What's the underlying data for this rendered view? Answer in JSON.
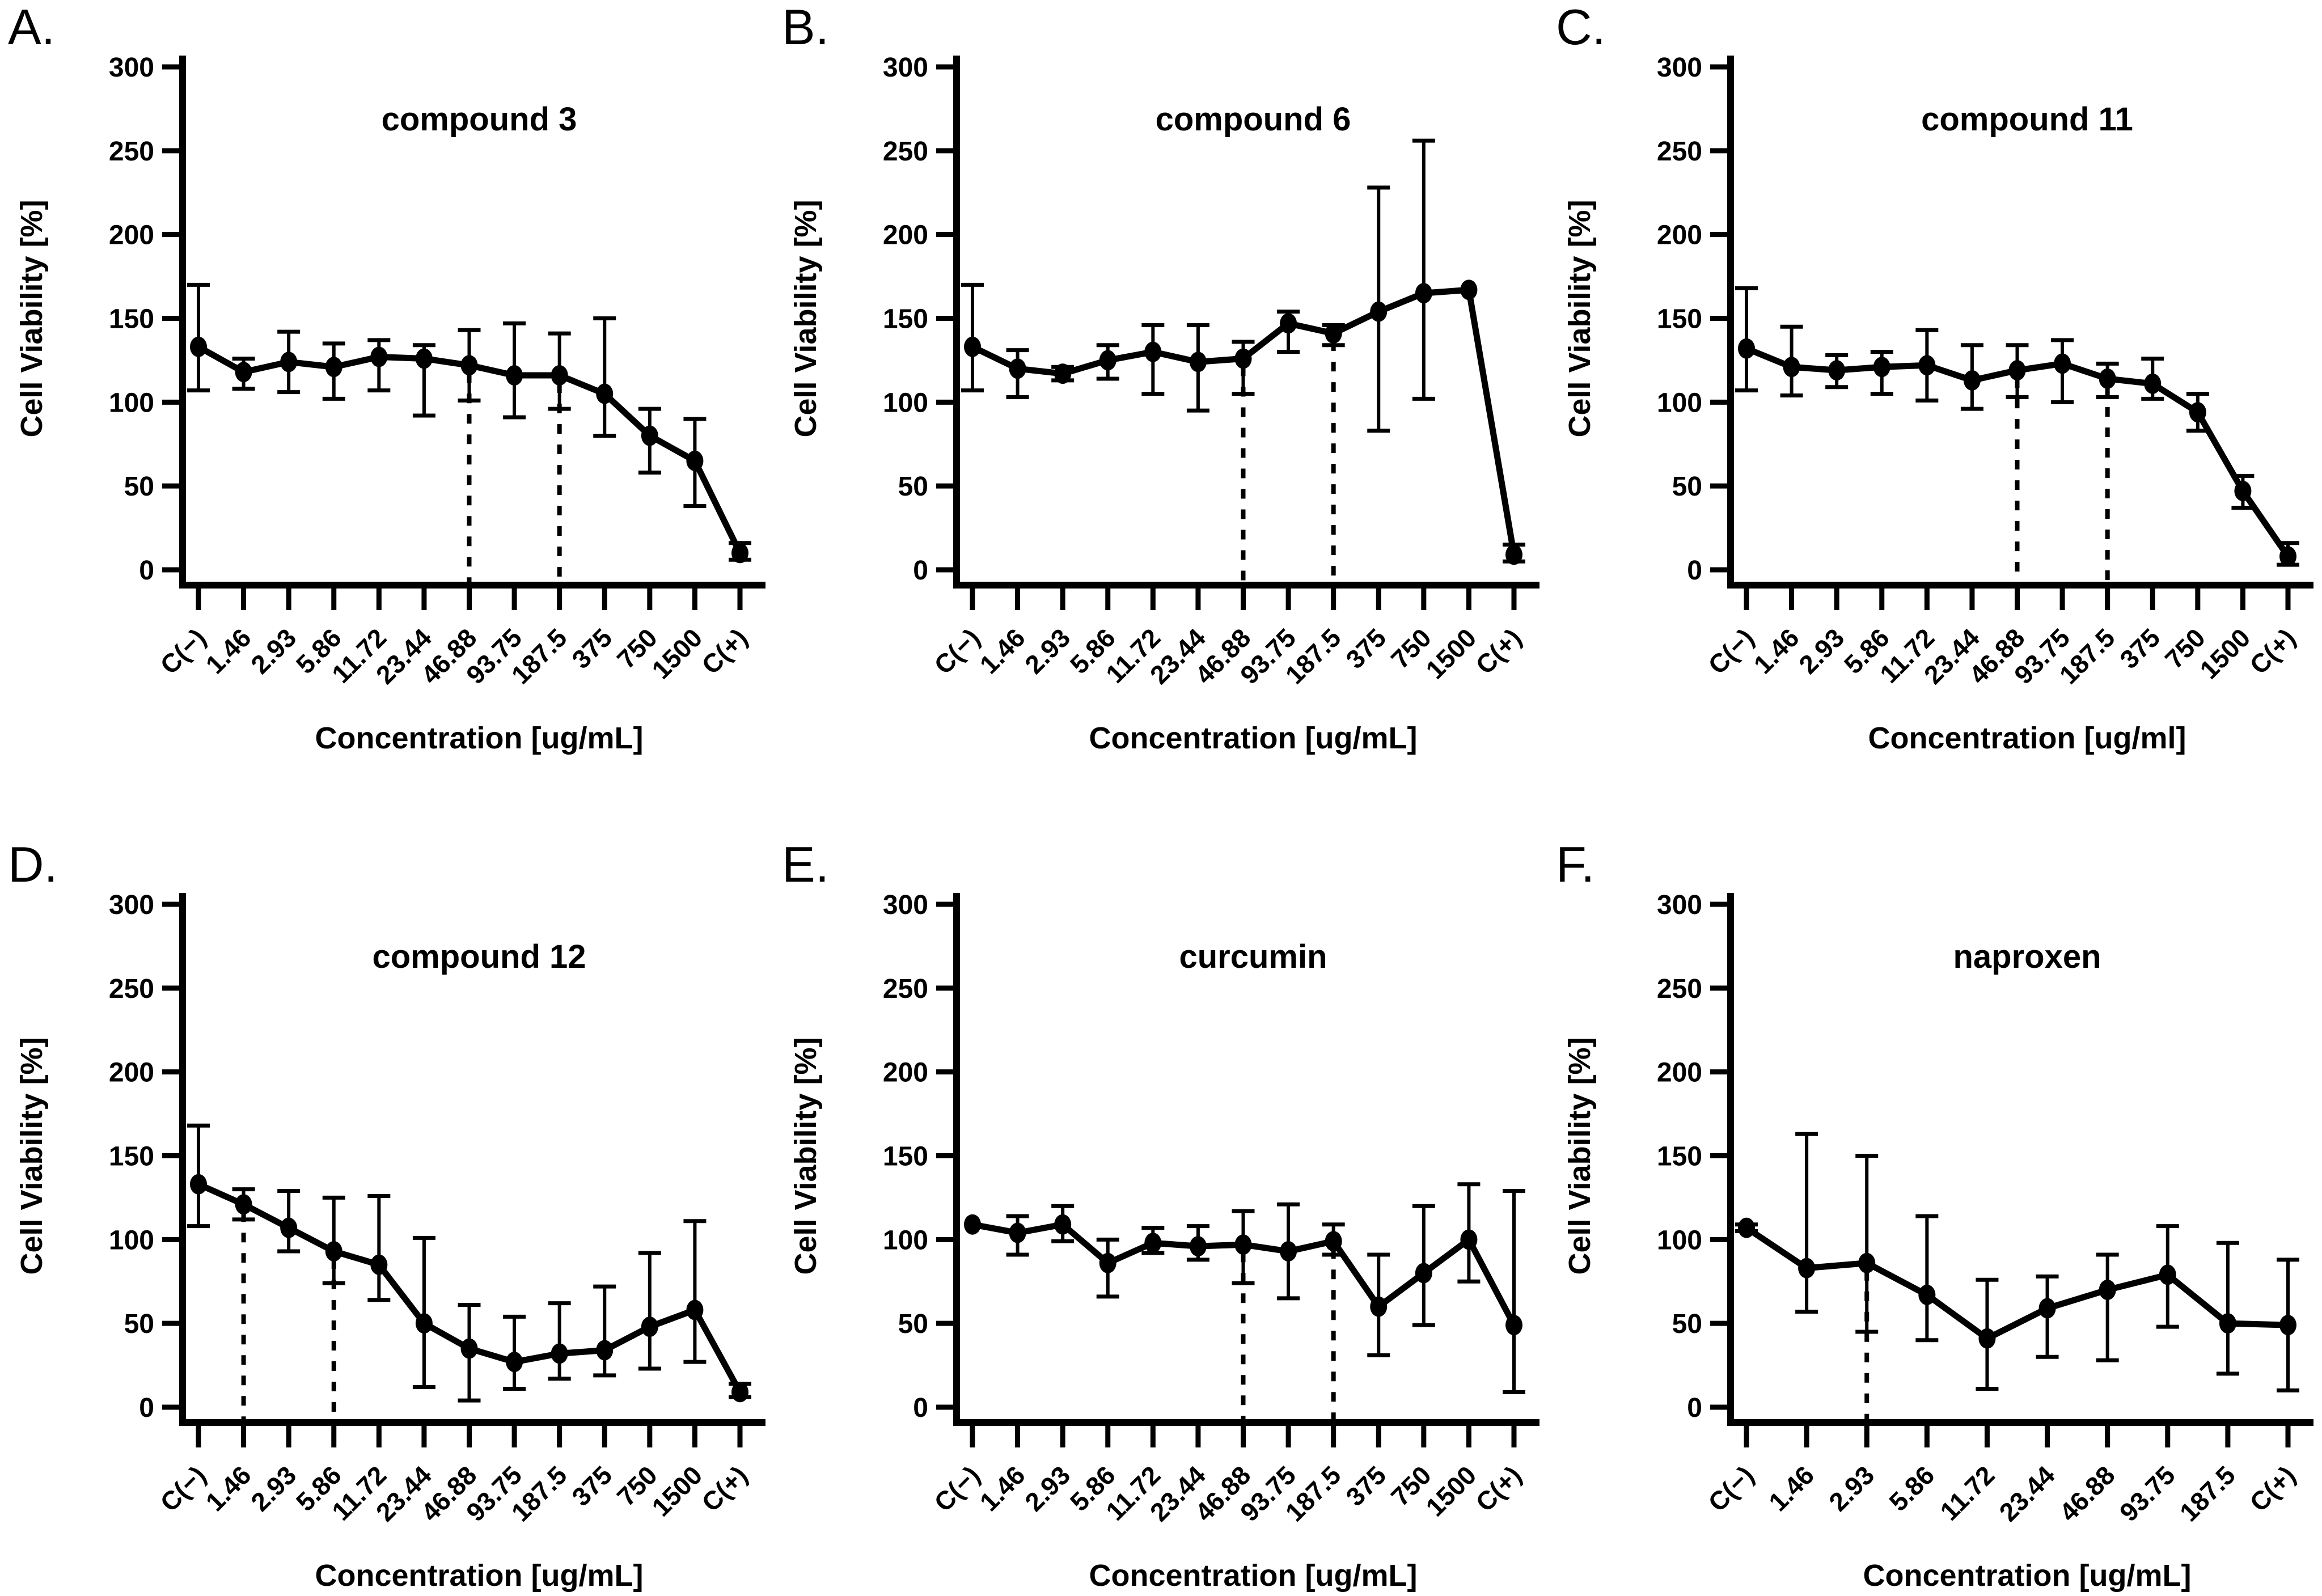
{
  "figure": {
    "background": "#ffffff",
    "ink_color": "#000000",
    "ylim": [
      0,
      300
    ],
    "yticks": [
      0,
      50,
      100,
      150,
      200,
      250,
      300
    ]
  },
  "chart_data": [
    {
      "type": "line",
      "panel_letter": "A.",
      "title": "compound 3",
      "xlabel": "Concentration [ug/mL]",
      "ylabel": "Cell Viability [%]",
      "ylim": [
        0,
        300
      ],
      "yticks": [
        0,
        50,
        100,
        150,
        200,
        250,
        300
      ],
      "categories": [
        "C(−)",
        "1.46",
        "2.93",
        "5.86",
        "11.72",
        "23.44",
        "46.88",
        "93.75",
        "187.5",
        "375",
        "750",
        "1500",
        "C(+)"
      ],
      "values": [
        133,
        118,
        124,
        121,
        127,
        126,
        122,
        116,
        116,
        105,
        80,
        65,
        10
      ],
      "err_top": [
        170,
        126,
        142,
        135,
        137,
        134,
        143,
        147,
        141,
        150,
        96,
        90,
        16
      ],
      "err_bottom": [
        107,
        108,
        106,
        102,
        107,
        92,
        101,
        91,
        96,
        80,
        58,
        38,
        6
      ],
      "dashed_at": [
        "46.88",
        "187.5"
      ],
      "legend": [],
      "grid": "off"
    },
    {
      "type": "line",
      "panel_letter": "B.",
      "title": "compound 6",
      "xlabel": "Concentration [ug/mL]",
      "ylabel": "Cell Viability [%]",
      "ylim": [
        0,
        300
      ],
      "yticks": [
        0,
        50,
        100,
        150,
        200,
        250,
        300
      ],
      "categories": [
        "C(−)",
        "1.46",
        "2.93",
        "5.86",
        "11.72",
        "23.44",
        "46.88",
        "93.75",
        "187.5",
        "375",
        "750",
        "1500",
        "C(+)"
      ],
      "values": [
        133,
        120,
        117,
        125,
        130,
        124,
        126,
        147,
        141,
        154,
        165,
        167,
        9
      ],
      "err_top": [
        170,
        131,
        121,
        134,
        146,
        146,
        136,
        154,
        146,
        228,
        256,
        167,
        15
      ],
      "err_bottom": [
        107,
        103,
        113,
        114,
        105,
        95,
        105,
        130,
        134,
        83,
        102,
        167,
        5
      ],
      "dashed_at": [
        "46.88",
        "187.5"
      ],
      "legend": [],
      "grid": "off"
    },
    {
      "type": "line",
      "panel_letter": "C.",
      "title": "compound 11",
      "xlabel": "Concentration [ug/ml]",
      "ylabel": "Cell Viability [%]",
      "ylim": [
        0,
        300
      ],
      "yticks": [
        0,
        50,
        100,
        150,
        200,
        250,
        300
      ],
      "categories": [
        "C(−)",
        "1.46",
        "2.93",
        "5.86",
        "11.72",
        "23.44",
        "46.88",
        "93.75",
        "187.5",
        "375",
        "750",
        "1500",
        "C(+)"
      ],
      "values": [
        132,
        121,
        119,
        121,
        122,
        113,
        119,
        123,
        114,
        111,
        94,
        47,
        8
      ],
      "err_top": [
        168,
        145,
        128,
        130,
        143,
        134,
        134,
        137,
        123,
        126,
        105,
        56,
        16
      ],
      "err_bottom": [
        107,
        104,
        109,
        105,
        101,
        96,
        103,
        100,
        103,
        102,
        83,
        37,
        3
      ],
      "dashed_at": [
        "46.88",
        "187.5"
      ],
      "legend": [],
      "grid": "off"
    },
    {
      "type": "line",
      "panel_letter": "D.",
      "title": "compound 12",
      "xlabel": "Concentration [ug/mL]",
      "ylabel": "Cell Viability [%]",
      "ylim": [
        0,
        300
      ],
      "yticks": [
        0,
        50,
        100,
        150,
        200,
        250,
        300
      ],
      "categories": [
        "C(−)",
        "1.46",
        "2.93",
        "5.86",
        "11.72",
        "23.44",
        "46.88",
        "93.75",
        "187.5",
        "375",
        "750",
        "1500",
        "C(+)"
      ],
      "values": [
        133,
        121,
        107,
        93,
        85,
        50,
        35,
        27,
        32,
        34,
        48,
        58,
        9
      ],
      "err_top": [
        168,
        130,
        129,
        125,
        126,
        101,
        61,
        54,
        62,
        72,
        92,
        111,
        14
      ],
      "err_bottom": [
        108,
        112,
        93,
        74,
        64,
        12,
        4,
        11,
        17,
        19,
        23,
        27,
        6
      ],
      "dashed_at": [
        "1.46",
        "5.86"
      ],
      "legend": [],
      "grid": "off"
    },
    {
      "type": "line",
      "panel_letter": "E.",
      "title": "curcumin",
      "xlabel": "Concentration [ug/mL]",
      "ylabel": "Cell Viability [%]",
      "ylim": [
        0,
        300
      ],
      "yticks": [
        0,
        50,
        100,
        150,
        200,
        250,
        300
      ],
      "categories": [
        "C(−)",
        "1.46",
        "2.93",
        "5.86",
        "11.72",
        "23.44",
        "46.88",
        "93.75",
        "187.5",
        "375",
        "750",
        "1500",
        "C(+)"
      ],
      "values": [
        109,
        104,
        109,
        86,
        98,
        96,
        97,
        93,
        99,
        60,
        80,
        100,
        49
      ],
      "err_top": [
        109,
        114,
        120,
        100,
        107,
        108,
        117,
        121,
        109,
        91,
        120,
        133,
        129
      ],
      "err_bottom": [
        109,
        91,
        99,
        66,
        92,
        88,
        74,
        65,
        91,
        31,
        49,
        75,
        9
      ],
      "dashed_at": [
        "46.88",
        "187.5"
      ],
      "legend": [],
      "grid": "off"
    },
    {
      "type": "line",
      "panel_letter": "F.",
      "title": "naproxen",
      "xlabel": "Concentration [ug/mL]",
      "ylabel": "Cell Viability [%]",
      "ylim": [
        0,
        300
      ],
      "yticks": [
        0,
        50,
        100,
        150,
        200,
        250,
        300
      ],
      "categories": [
        "C(−)",
        "1.46",
        "2.93",
        "5.86",
        "11.72",
        "23.44",
        "46.88",
        "93.75",
        "187.5",
        "C(+)"
      ],
      "values": [
        107,
        83,
        86,
        67,
        41,
        59,
        70,
        79,
        50,
        49
      ],
      "err_top": [
        109,
        163,
        150,
        114,
        76,
        78,
        91,
        108,
        98,
        88
      ],
      "err_bottom": [
        105,
        57,
        45,
        40,
        11,
        30,
        28,
        48,
        20,
        10
      ],
      "dashed_at": [
        "2.93"
      ],
      "legend": [],
      "grid": "off"
    }
  ]
}
